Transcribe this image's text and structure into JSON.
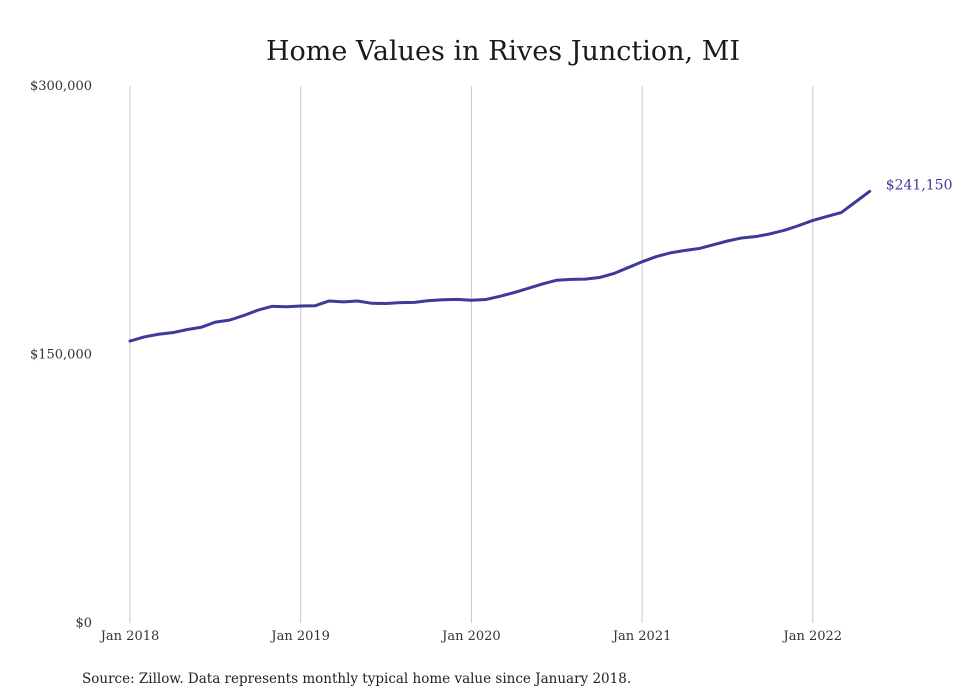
{
  "chart_data": {
    "type": "line",
    "title": "Home Values in Rives Junction, MI",
    "xlabel": "",
    "ylabel": "",
    "x_tick_labels": [
      "Jan 2018",
      "Jan 2019",
      "Jan 2020",
      "Jan 2021",
      "Jan 2022"
    ],
    "y_tick_labels": [
      "$0",
      "$150,000",
      "$300,000"
    ],
    "y_ticks": [
      0,
      150000,
      300000
    ],
    "ylim": [
      0,
      300000
    ],
    "x": [
      "2018-01",
      "2018-02",
      "2018-03",
      "2018-04",
      "2018-05",
      "2018-06",
      "2018-07",
      "2018-08",
      "2018-09",
      "2018-10",
      "2018-11",
      "2018-12",
      "2019-01",
      "2019-02",
      "2019-03",
      "2019-04",
      "2019-05",
      "2019-06",
      "2019-07",
      "2019-08",
      "2019-09",
      "2019-10",
      "2019-11",
      "2019-12",
      "2020-01",
      "2020-02",
      "2020-03",
      "2020-04",
      "2020-05",
      "2020-06",
      "2020-07",
      "2020-08",
      "2020-09",
      "2020-10",
      "2020-11",
      "2020-12",
      "2021-01",
      "2021-02",
      "2021-03",
      "2021-04",
      "2021-05",
      "2021-06",
      "2021-07",
      "2021-08",
      "2021-09",
      "2021-10",
      "2021-11",
      "2021-12",
      "2022-01",
      "2022-02",
      "2022-03",
      "2022-04",
      "2022-05"
    ],
    "series": [
      {
        "values": [
          157500,
          159800,
          161300,
          162200,
          163900,
          165200,
          168100,
          169200,
          171800,
          174800,
          176900,
          176700,
          177100,
          177200,
          179900,
          179400,
          179900,
          178600,
          178500,
          179000,
          179100,
          180100,
          180600,
          180800,
          180300,
          180700,
          182500,
          184600,
          187000,
          189400,
          191500,
          192000,
          192100,
          193000,
          195200,
          198500,
          201800,
          204700,
          206800,
          208100,
          209200,
          211300,
          213400,
          215100,
          215900,
          217400,
          219400,
          222000,
          224900,
          227100,
          229300,
          235200,
          241150
        ],
        "end_label": "$241,150"
      }
    ],
    "grid": {
      "vertical": true,
      "horizontal": false
    },
    "line_color": "#3d3a99"
  },
  "source_note": "Source: Zillow. Data represents monthly typical home value since January 2018."
}
